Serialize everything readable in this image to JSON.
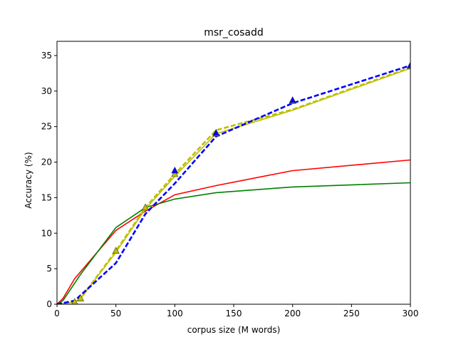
{
  "chart_data": {
    "type": "line",
    "title": "msr_cosadd",
    "xlabel": "corpus size (M words)",
    "ylabel": "Accuracy (%)",
    "xlim": [
      0,
      300
    ],
    "ylim": [
      0,
      37
    ],
    "xticks": [
      0,
      50,
      100,
      150,
      200,
      250,
      300
    ],
    "yticks": [
      0,
      5,
      10,
      15,
      20,
      25,
      30,
      35
    ],
    "grid": false,
    "legend": "none",
    "series": [
      {
        "color": "#ff0000",
        "style": "solid",
        "x": [
          0,
          5,
          15,
          50,
          75,
          100,
          135,
          200,
          300
        ],
        "y": [
          0,
          0.8,
          3.6,
          10.4,
          13.1,
          15.4,
          16.7,
          18.8,
          20.3
        ]
      },
      {
        "color": "#008000",
        "style": "solid",
        "x": [
          0,
          5,
          20,
          50,
          75,
          100,
          135,
          200,
          300
        ],
        "y": [
          0,
          0.5,
          4.2,
          10.8,
          13.6,
          14.8,
          15.7,
          16.5,
          17.1
        ]
      },
      {
        "color": "#bfbf00",
        "style": "dashed",
        "marker": "triangle",
        "x": [
          0,
          15,
          20,
          50,
          75,
          100,
          135,
          200,
          300
        ],
        "y": [
          0,
          0.3,
          0.8,
          7.5,
          13.6,
          18.3,
          24.5,
          27.4,
          33.3
        ]
      },
      {
        "color": "#bfbf00",
        "style": "solid",
        "x": [
          0,
          15,
          20,
          50,
          75,
          100,
          135,
          200,
          300
        ],
        "y": [
          0,
          0.3,
          0.8,
          7.3,
          13.4,
          18.0,
          24.0,
          27.3,
          33.2
        ]
      },
      {
        "color": "#0000ff",
        "style": "dashed",
        "marker": "triangle",
        "x": [
          0,
          15,
          50,
          75,
          100,
          135,
          200,
          300
        ],
        "y": [
          0,
          0.5,
          5.8,
          12.7,
          17.0,
          23.6,
          28.3,
          33.6
        ]
      }
    ],
    "markers": [
      {
        "color": "#bfbf00",
        "x": [
          15,
          20,
          50,
          75,
          100,
          135,
          200,
          300
        ],
        "y": [
          0.3,
          0.8,
          7.5,
          13.6,
          18.3,
          24.0,
          28.6,
          33.5
        ]
      },
      {
        "color": "#0000ff",
        "x": [
          100,
          135,
          200,
          300
        ],
        "y": [
          18.8,
          24.1,
          28.7,
          33.6
        ]
      }
    ]
  }
}
